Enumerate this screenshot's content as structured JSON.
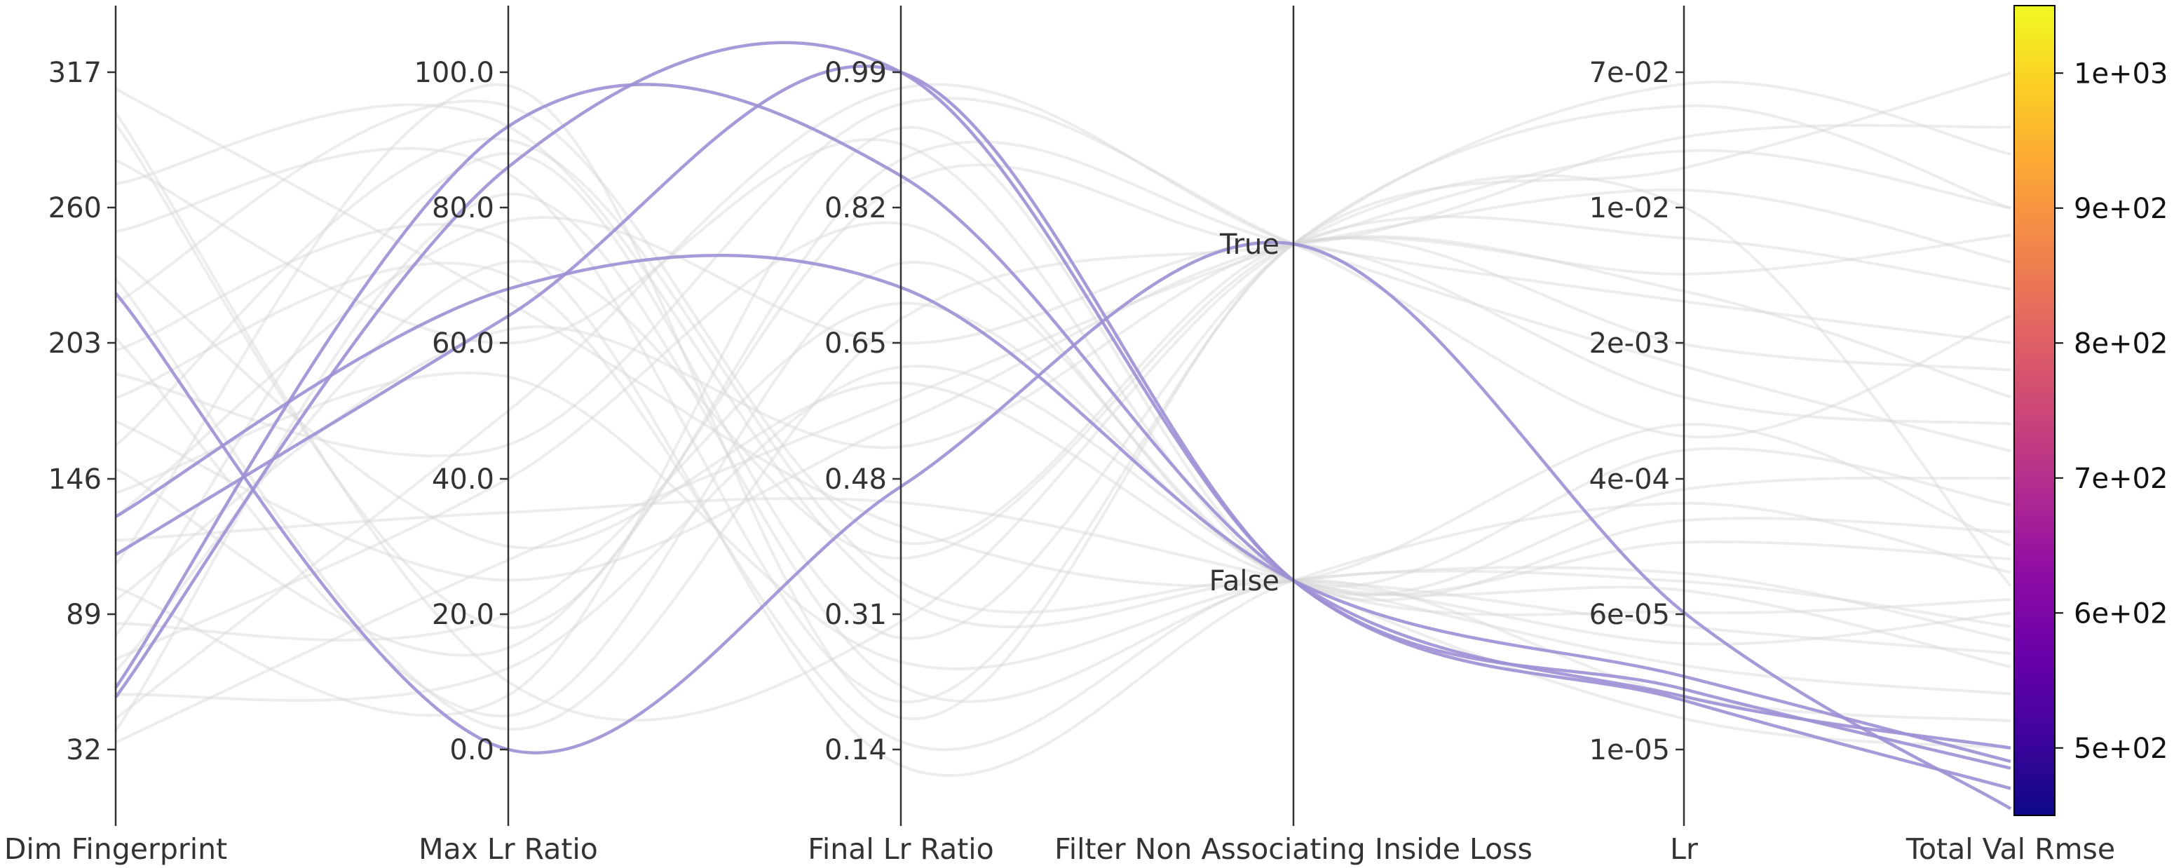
{
  "chart_data": {
    "type": "parallel-coordinates",
    "title": "",
    "axes": [
      {
        "name": "Dim Fingerprint",
        "ticks": [
          "317",
          "260",
          "203",
          "146",
          "89",
          "32"
        ],
        "tick_values": [
          317,
          260,
          203,
          146,
          89,
          32
        ]
      },
      {
        "name": "Max Lr Ratio",
        "ticks": [
          "100.0",
          "80.0",
          "60.0",
          "40.0",
          "20.0",
          "0.0"
        ],
        "tick_values": [
          100,
          80,
          60,
          40,
          20,
          0
        ]
      },
      {
        "name": "Final Lr Ratio",
        "ticks": [
          "0.99",
          "0.82",
          "0.65",
          "0.48",
          "0.31",
          "0.14"
        ],
        "tick_values": [
          0.99,
          0.82,
          0.65,
          0.48,
          0.31,
          0.14
        ]
      },
      {
        "name": "Filter Non Associating Inside Loss",
        "ticks": [
          "True",
          "False"
        ],
        "tick_values": [
          1,
          0
        ]
      },
      {
        "name": "Lr",
        "ticks": [
          "7e-02",
          "1e-02",
          "2e-03",
          "4e-04",
          "6e-05",
          "1e-05"
        ],
        "tick_values": [
          0.07,
          0.01,
          0.002,
          0.0004,
          6e-05,
          1e-05
        ],
        "scale": "log"
      },
      {
        "name": "Total Val Rmse",
        "ticks": [],
        "tick_values": []
      }
    ],
    "colorbar": {
      "colormap": "plasma",
      "range": [
        450,
        1050
      ],
      "labels": [
        "1e+03",
        "9e+02",
        "8e+02",
        "7e+02",
        "6e+02",
        "5e+02"
      ],
      "label_values": [
        1000,
        900,
        800,
        700,
        600,
        500
      ]
    },
    "highlighted_color": "#9f8fd4",
    "background_color": "#d6d6d6",
    "highlighted_series": [
      {
        "values": [
          58,
          92,
          0.86,
          0,
          2e-05,
          500
        ]
      },
      {
        "values": [
          54,
          86,
          0.99,
          0,
          2.2e-05,
          485
        ]
      },
      {
        "values": [
          114,
          64,
          0.99,
          0,
          1.9e-05,
          470
        ]
      },
      {
        "values": [
          130,
          68,
          0.72,
          0,
          2.6e-05,
          490
        ]
      },
      {
        "values": [
          224,
          0,
          0.47,
          1,
          6e-05,
          455
        ]
      }
    ],
    "background_series": [
      {
        "values": [
          300,
          10,
          0.3,
          1,
          0.012,
          620
        ]
      },
      {
        "values": [
          280,
          60,
          0.9,
          0,
          0.0003,
          700
        ]
      },
      {
        "values": [
          250,
          85,
          0.2,
          1,
          0.045,
          900
        ]
      },
      {
        "values": [
          240,
          30,
          0.6,
          0,
          8e-05,
          560
        ]
      },
      {
        "values": [
          220,
          95,
          0.4,
          1,
          0.002,
          780
        ]
      },
      {
        "values": [
          205,
          5,
          0.75,
          0,
          0.00015,
          640
        ]
      },
      {
        "values": [
          190,
          45,
          0.95,
          1,
          0.0006,
          820
        ]
      },
      {
        "values": [
          180,
          70,
          0.15,
          0,
          2e-05,
          520
        ]
      },
      {
        "values": [
          170,
          25,
          0.55,
          1,
          0.005,
          880
        ]
      },
      {
        "values": [
          160,
          90,
          0.35,
          0,
          4e-05,
          600
        ]
      },
      {
        "values": [
          150,
          15,
          0.85,
          1,
          0.03,
          960
        ]
      },
      {
        "values": [
          140,
          55,
          0.25,
          0,
          0.0001,
          580
        ]
      },
      {
        "values": [
          130,
          78,
          0.65,
          1,
          0.001,
          740
        ]
      },
      {
        "values": [
          120,
          35,
          0.45,
          0,
          3e-05,
          540
        ]
      },
      {
        "values": [
          110,
          98,
          0.18,
          1,
          0.02,
          1000
        ]
      },
      {
        "values": [
          100,
          8,
          0.92,
          0,
          0.0002,
          660
        ]
      },
      {
        "values": [
          95,
          62,
          0.52,
          1,
          0.004,
          760
        ]
      },
      {
        "values": [
          85,
          20,
          0.7,
          0,
          6e-05,
          610
        ]
      },
      {
        "values": [
          80,
          88,
          0.28,
          1,
          0.06,
          940
        ]
      },
      {
        "values": [
          70,
          40,
          0.8,
          0,
          0.0005,
          680
        ]
      },
      {
        "values": [
          65,
          72,
          0.38,
          1,
          0.008,
          840
        ]
      },
      {
        "values": [
          55,
          12,
          0.62,
          0,
          1.5e-05,
          500
        ]
      },
      {
        "values": [
          45,
          50,
          0.97,
          1,
          0.0015,
          720
        ]
      },
      {
        "values": [
          40,
          82,
          0.22,
          0,
          9e-05,
          590
        ]
      },
      {
        "values": [
          35,
          28,
          0.58,
          1,
          0.025,
          900
        ]
      },
      {
        "values": [
          310,
          66,
          0.42,
          0,
          0.0007,
          650
        ]
      },
      {
        "values": [
          295,
          18,
          0.88,
          1,
          0.0035,
          800
        ]
      },
      {
        "values": [
          270,
          92,
          0.33,
          0,
          5e-05,
          570
        ]
      },
      {
        "values": [
          230,
          3,
          0.68,
          1,
          0.015,
          860
        ]
      },
      {
        "values": [
          200,
          75,
          0.12,
          0,
          0.00025,
          630
        ]
      }
    ]
  }
}
